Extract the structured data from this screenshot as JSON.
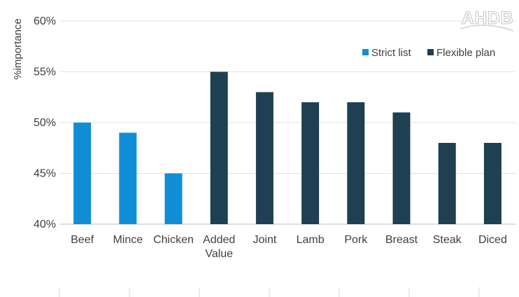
{
  "chart_data": {
    "type": "bar",
    "title": "",
    "ylabel": "%importance",
    "xlabel": "",
    "ylim": [
      40,
      60
    ],
    "yticks": [
      40,
      45,
      50,
      55,
      60
    ],
    "ytick_labels": [
      "40%",
      "45%",
      "50%",
      "55%",
      "60%"
    ],
    "grid": true,
    "legend_position": "top-right",
    "categories": [
      "Beef",
      "Mince",
      "Chicken",
      "Added Value",
      "Joint",
      "Lamb",
      "Pork",
      "Breast",
      "Steak",
      "Diced"
    ],
    "series": [
      {
        "name": "Strict list",
        "color": "#0f8ed6",
        "values": [
          50,
          49,
          45,
          null,
          null,
          null,
          null,
          null,
          null,
          null
        ]
      },
      {
        "name": "Flexible plan",
        "color": "#1f3f52",
        "values": [
          null,
          null,
          null,
          55,
          53,
          52,
          52,
          51,
          48,
          48
        ]
      }
    ]
  },
  "logo": {
    "text": "AHDB"
  }
}
